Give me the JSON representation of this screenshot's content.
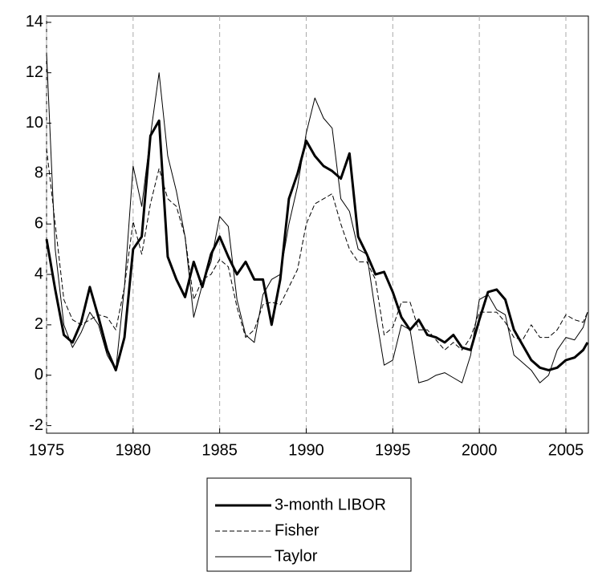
{
  "chart_data": {
    "type": "line",
    "x": [
      1975.0,
      1975.5,
      1976.0,
      1976.5,
      1977.0,
      1977.5,
      1978.0,
      1978.5,
      1979.0,
      1979.5,
      1980.0,
      1980.5,
      1981.0,
      1981.5,
      1982.0,
      1982.5,
      1983.0,
      1983.5,
      1984.0,
      1984.5,
      1985.0,
      1985.5,
      1986.0,
      1986.5,
      1987.0,
      1987.5,
      1988.0,
      1988.5,
      1989.0,
      1989.5,
      1990.0,
      1990.5,
      1991.0,
      1991.5,
      1992.0,
      1992.5,
      1993.0,
      1993.5,
      1994.0,
      1994.5,
      1995.0,
      1995.5,
      1996.0,
      1996.5,
      1997.0,
      1997.5,
      1998.0,
      1998.5,
      1999.0,
      1999.5,
      2000.0,
      2000.5,
      2001.0,
      2001.5,
      2002.0,
      2002.5,
      2003.0,
      2003.5,
      2004.0,
      2004.5,
      2005.0,
      2005.5,
      2006.0,
      2006.25
    ],
    "series": [
      {
        "name": "3-month LIBOR",
        "color": "#000000",
        "line_width": 3,
        "dash": "solid",
        "values": [
          5.4,
          3.4,
          1.6,
          1.3,
          2.1,
          3.5,
          2.3,
          1.0,
          0.2,
          1.5,
          5.0,
          5.5,
          9.5,
          10.1,
          4.7,
          3.8,
          3.1,
          4.5,
          3.5,
          4.8,
          5.5,
          4.7,
          4.0,
          4.5,
          3.8,
          3.8,
          2.0,
          3.8,
          7.0,
          8.0,
          9.3,
          8.7,
          8.3,
          8.1,
          7.8,
          8.8,
          5.5,
          4.8,
          4.0,
          4.1,
          3.3,
          2.3,
          1.8,
          2.2,
          1.6,
          1.5,
          1.3,
          1.6,
          1.1,
          1.0,
          2.2,
          3.3,
          3.4,
          3.0,
          1.8,
          1.2,
          0.6,
          0.3,
          0.2,
          0.3,
          0.6,
          0.7,
          1.0,
          1.3
        ]
      },
      {
        "name": "Fisher",
        "color": "#000000",
        "line_width": 1,
        "dash": "dashed",
        "values": [
          9.0,
          6.0,
          3.0,
          2.2,
          2.0,
          2.2,
          2.4,
          2.3,
          1.8,
          3.5,
          6.1,
          4.8,
          6.8,
          8.2,
          7.0,
          6.7,
          5.5,
          3.0,
          3.8,
          4.0,
          4.6,
          4.3,
          2.7,
          1.5,
          1.8,
          2.8,
          2.9,
          2.8,
          3.5,
          4.2,
          6.0,
          6.8,
          7.0,
          7.2,
          6.0,
          5.0,
          4.5,
          4.5,
          3.8,
          1.6,
          1.9,
          2.9,
          2.9,
          1.8,
          1.8,
          1.4,
          1.0,
          1.3,
          1.0,
          1.5,
          2.5,
          2.5,
          2.5,
          2.1,
          1.5,
          1.4,
          2.0,
          1.5,
          1.5,
          1.8,
          2.4,
          2.2,
          2.1,
          2.5
        ]
      },
      {
        "name": "Taylor",
        "color": "#000000",
        "line_width": 1,
        "dash": "solid",
        "values": [
          12.8,
          5.0,
          2.0,
          1.1,
          1.7,
          2.5,
          2.0,
          0.8,
          0.2,
          3.5,
          8.3,
          6.7,
          9.5,
          12.0,
          8.7,
          7.3,
          5.5,
          2.3,
          3.6,
          4.5,
          6.3,
          5.9,
          3.0,
          1.6,
          1.3,
          3.2,
          3.8,
          4.0,
          6.0,
          7.5,
          9.6,
          11.0,
          10.2,
          9.8,
          7.0,
          6.5,
          5.0,
          4.8,
          2.5,
          0.4,
          0.6,
          2.0,
          1.8,
          -0.3,
          -0.2,
          0.0,
          0.1,
          -0.1,
          -0.3,
          0.8,
          3.0,
          3.2,
          2.6,
          2.4,
          0.8,
          0.5,
          0.2,
          -0.3,
          0.0,
          1.0,
          1.5,
          1.4,
          1.9,
          2.5
        ]
      }
    ],
    "xlim": [
      1975,
      2006.3
    ],
    "xticks": [
      1975,
      1980,
      1985,
      1990,
      1995,
      2000,
      2005
    ],
    "ylim": [
      -2.3,
      14.25
    ],
    "yticks": [
      -2,
      0,
      2,
      4,
      6,
      8,
      10,
      12,
      14
    ],
    "x_grid": true,
    "grid_color": "#aaaaaa",
    "legend_position": "bottom"
  }
}
